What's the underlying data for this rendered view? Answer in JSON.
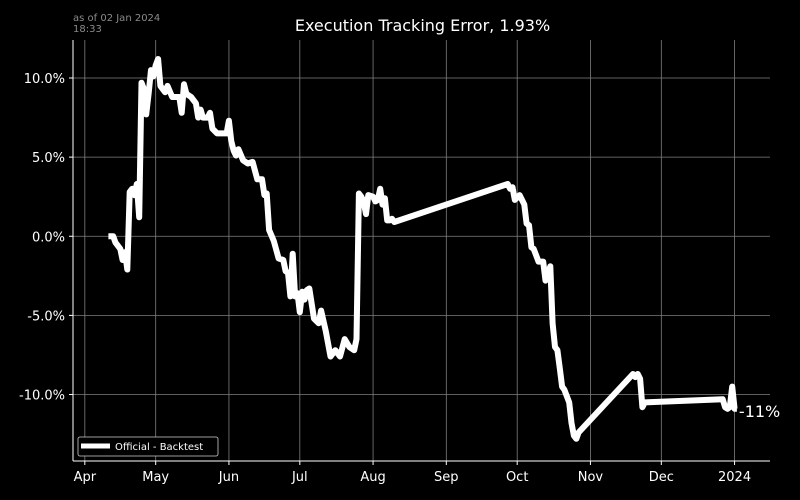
{
  "header": {
    "timestamp_date": "as of 02 Jan 2024",
    "timestamp_time": "18:33",
    "title": "Execution Tracking Error, 1.93%"
  },
  "colors": {
    "background": "#000000",
    "line": "#ffffff",
    "grid": "#7f7f7f",
    "text": "#ffffff"
  },
  "chart_data": {
    "type": "line",
    "title": "Execution Tracking Error, 1.93%",
    "xlabel": "",
    "ylabel": "",
    "y_unit": "percent",
    "ylim": [
      -14.2,
      12.4
    ],
    "xlim": [
      "2023-03-27",
      "2024-01-16"
    ],
    "grid": true,
    "legend_position": "lower-left",
    "x_ticks": [
      {
        "date": "2023-04-01",
        "label": "Apr"
      },
      {
        "date": "2023-05-01",
        "label": "May"
      },
      {
        "date": "2023-06-01",
        "label": "Jun"
      },
      {
        "date": "2023-07-01",
        "label": "Jul"
      },
      {
        "date": "2023-08-01",
        "label": "Aug"
      },
      {
        "date": "2023-09-01",
        "label": "Sep"
      },
      {
        "date": "2023-10-01",
        "label": "Oct"
      },
      {
        "date": "2023-11-01",
        "label": "Nov"
      },
      {
        "date": "2023-12-01",
        "label": "Dec"
      },
      {
        "date": "2024-01-01",
        "label": "2024"
      }
    ],
    "y_ticks": [
      {
        "value": 10,
        "label": "10.0%"
      },
      {
        "value": 5,
        "label": "5.0%"
      },
      {
        "value": 0,
        "label": "0.0%"
      },
      {
        "value": -5,
        "label": "-5.0%"
      },
      {
        "value": -10,
        "label": "-10.0%"
      }
    ],
    "end_label": "-11%",
    "series": [
      {
        "name": "Official - Backtest",
        "points": [
          [
            "2023-04-11",
            0.0
          ],
          [
            "2023-04-13",
            0.0
          ],
          [
            "2023-04-14",
            -0.4
          ],
          [
            "2023-04-16",
            -0.8
          ],
          [
            "2023-04-17",
            -1.5
          ],
          [
            "2023-04-18",
            -1.0
          ],
          [
            "2023-04-19",
            -2.1
          ],
          [
            "2023-04-20",
            2.8
          ],
          [
            "2023-04-21",
            3.0
          ],
          [
            "2023-04-22",
            2.6
          ],
          [
            "2023-04-23",
            3.3
          ],
          [
            "2023-04-24",
            1.2
          ],
          [
            "2023-04-25",
            9.7
          ],
          [
            "2023-04-26",
            9.3
          ],
          [
            "2023-04-27",
            7.7
          ],
          [
            "2023-04-28",
            9.0
          ],
          [
            "2023-04-29",
            10.5
          ],
          [
            "2023-04-30",
            10.1
          ],
          [
            "2023-05-01",
            10.8
          ],
          [
            "2023-05-02",
            11.2
          ],
          [
            "2023-05-03",
            9.5
          ],
          [
            "2023-05-05",
            9.1
          ],
          [
            "2023-05-06",
            9.5
          ],
          [
            "2023-05-08",
            8.8
          ],
          [
            "2023-05-11",
            8.8
          ],
          [
            "2023-05-12",
            7.8
          ],
          [
            "2023-05-13",
            9.6
          ],
          [
            "2023-05-14",
            9.0
          ],
          [
            "2023-05-16",
            8.8
          ],
          [
            "2023-05-18",
            8.4
          ],
          [
            "2023-05-19",
            7.5
          ],
          [
            "2023-05-20",
            8.0
          ],
          [
            "2023-05-21",
            7.5
          ],
          [
            "2023-05-23",
            7.5
          ],
          [
            "2023-05-24",
            7.8
          ],
          [
            "2023-05-25",
            6.8
          ],
          [
            "2023-05-27",
            6.5
          ],
          [
            "2023-05-29",
            6.5
          ],
          [
            "2023-05-31",
            6.5
          ],
          [
            "2023-06-01",
            7.3
          ],
          [
            "2023-06-02",
            6.0
          ],
          [
            "2023-06-03",
            5.4
          ],
          [
            "2023-06-04",
            5.1
          ],
          [
            "2023-06-05",
            5.5
          ],
          [
            "2023-06-07",
            4.8
          ],
          [
            "2023-06-09",
            4.6
          ],
          [
            "2023-06-11",
            4.7
          ],
          [
            "2023-06-13",
            3.6
          ],
          [
            "2023-06-15",
            3.6
          ],
          [
            "2023-06-16",
            2.6
          ],
          [
            "2023-06-17",
            2.7
          ],
          [
            "2023-06-18",
            0.4
          ],
          [
            "2023-06-20",
            -0.3
          ],
          [
            "2023-06-22",
            -1.4
          ],
          [
            "2023-06-24",
            -1.5
          ],
          [
            "2023-06-25",
            -2.2
          ],
          [
            "2023-06-26",
            -2.3
          ],
          [
            "2023-06-27",
            -3.8
          ],
          [
            "2023-06-28",
            -1.1
          ],
          [
            "2023-06-29",
            -3.8
          ],
          [
            "2023-06-30",
            -3.6
          ],
          [
            "2023-07-01",
            -4.8
          ],
          [
            "2023-07-02",
            -3.5
          ],
          [
            "2023-07-03",
            -4.0
          ],
          [
            "2023-07-04",
            -3.4
          ],
          [
            "2023-07-05",
            -3.3
          ],
          [
            "2023-07-07",
            -5.2
          ],
          [
            "2023-07-09",
            -5.5
          ],
          [
            "2023-07-10",
            -4.7
          ],
          [
            "2023-07-12",
            -6.0
          ],
          [
            "2023-07-14",
            -7.6
          ],
          [
            "2023-07-16",
            -7.2
          ],
          [
            "2023-07-18",
            -7.6
          ],
          [
            "2023-07-20",
            -6.5
          ],
          [
            "2023-07-22",
            -7.0
          ],
          [
            "2023-07-24",
            -7.2
          ],
          [
            "2023-07-25",
            -6.5
          ],
          [
            "2023-07-26",
            2.7
          ],
          [
            "2023-07-27",
            2.5
          ],
          [
            "2023-07-28",
            2.2
          ],
          [
            "2023-07-29",
            1.4
          ],
          [
            "2023-07-30",
            2.6
          ],
          [
            "2023-08-01",
            2.5
          ],
          [
            "2023-08-02",
            2.2
          ],
          [
            "2023-08-03",
            2.3
          ],
          [
            "2023-08-04",
            3.0
          ],
          [
            "2023-08-05",
            2.0
          ],
          [
            "2023-08-06",
            2.4
          ],
          [
            "2023-08-07",
            1.0
          ],
          [
            "2023-08-08",
            1.0
          ],
          [
            "2023-08-09",
            1.1
          ],
          [
            "2023-08-10",
            0.9
          ],
          [
            "2023-09-27",
            3.3
          ],
          [
            "2023-09-28",
            3.0
          ],
          [
            "2023-09-29",
            3.1
          ],
          [
            "2023-09-30",
            2.3
          ],
          [
            "2023-10-02",
            2.6
          ],
          [
            "2023-10-04",
            2.0
          ],
          [
            "2023-10-05",
            0.8
          ],
          [
            "2023-10-06",
            0.7
          ],
          [
            "2023-10-07",
            -0.7
          ],
          [
            "2023-10-08",
            -0.8
          ],
          [
            "2023-10-09",
            -1.2
          ],
          [
            "2023-10-10",
            -1.6
          ],
          [
            "2023-10-12",
            -1.6
          ],
          [
            "2023-10-13",
            -2.8
          ],
          [
            "2023-10-15",
            -1.9
          ],
          [
            "2023-10-16",
            -5.5
          ],
          [
            "2023-10-17",
            -7.0
          ],
          [
            "2023-10-18",
            -7.2
          ],
          [
            "2023-10-19",
            -8.3
          ],
          [
            "2023-10-20",
            -9.5
          ],
          [
            "2023-10-21",
            -9.7
          ],
          [
            "2023-10-23",
            -10.5
          ],
          [
            "2023-10-24",
            -11.8
          ],
          [
            "2023-10-25",
            -12.6
          ],
          [
            "2023-10-26",
            -12.8
          ],
          [
            "2023-10-27",
            -12.4
          ],
          [
            "2023-11-19",
            -8.7
          ],
          [
            "2023-11-20",
            -8.9
          ],
          [
            "2023-11-21",
            -8.7
          ],
          [
            "2023-11-22",
            -9.0
          ],
          [
            "2023-11-23",
            -10.8
          ],
          [
            "2023-11-24",
            -10.5
          ],
          [
            "2023-12-27",
            -10.3
          ],
          [
            "2023-12-28",
            -10.8
          ],
          [
            "2023-12-29",
            -10.9
          ],
          [
            "2023-12-30",
            -10.8
          ],
          [
            "2023-12-31",
            -9.5
          ],
          [
            "2024-01-01",
            -10.9
          ],
          [
            "2024-01-02",
            -10.9
          ]
        ]
      }
    ]
  }
}
